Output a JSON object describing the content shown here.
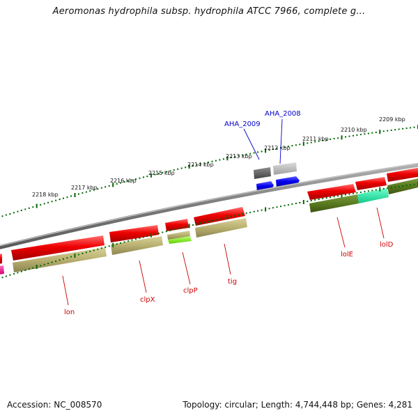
{
  "header": {
    "title": "Aeromonas hydrophila subsp. hydrophila ATCC 7966, complete g..."
  },
  "footer": {
    "accession": "Accession: NC_008570",
    "summary": "Topology: circular; Length: 4,744,448 bp; Genes: 4,281"
  },
  "ruler": {
    "ticks": [
      "2209 kbp",
      "2210 kbp",
      "2211 kbp",
      "2212 kbp",
      "2213 kbp",
      "2214 kbp",
      "2215 kbp",
      "2216 kbp",
      "2217 kbp",
      "2218 kbp"
    ]
  },
  "gene_labels": {
    "aha_2008": "AHA_2008",
    "aha_2009": "AHA_2009",
    "lon": "lon",
    "clpx": "clpX",
    "clpp": "clpP",
    "tig": "tig",
    "lole": "lolE",
    "lold": "lolD"
  },
  "colors": {
    "forward_cds": "#e00000",
    "reverse_cds": "#0000ee",
    "hypothetical_dark": "#555555",
    "hypothetical_light": "#b0b0b0",
    "cog_khaki": "#b8b070",
    "cog_olive": "#5a7a20",
    "cog_green": "#80ff20",
    "cog_mint": "#20e8a0",
    "cog_pink": "#ff2090",
    "backbone": "#888888",
    "tick": "#006600",
    "label_red": "#cc0000",
    "label_blue": "#0000cc"
  }
}
